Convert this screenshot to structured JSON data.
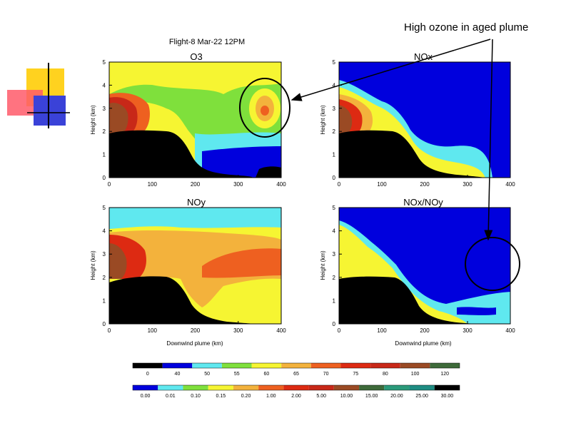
{
  "figure_title": "Flight-8 Mar-22 12PM",
  "callout_text": "High ozone in aged plume",
  "colors": {
    "terrain": "#000000",
    "o3_scale": [
      "#000000",
      "#0000dd",
      "#5fe8ef",
      "#7fe03c",
      "#f6f532",
      "#f3b23c",
      "#ee6020",
      "#dd2a12",
      "#c82818",
      "#9a4a24",
      "#3e6a3a"
    ],
    "ratio_scale": [
      "#0000dd",
      "#5fe8ef",
      "#7fe03c",
      "#f6f532",
      "#f3b23c",
      "#ee6020",
      "#dd2a12",
      "#c82818",
      "#9a4a24",
      "#3e6a3a",
      "#2a9a7a",
      "#1e8c82",
      "#000000"
    ]
  },
  "chart_data": [
    {
      "type": "heatmap",
      "title": "O3",
      "xlabel": "",
      "ylabel": "Height (km)",
      "xlim": [
        0,
        400
      ],
      "ylim": [
        0,
        5
      ],
      "xticks": [
        0,
        100,
        200,
        300,
        400
      ],
      "yticks": [
        0,
        1,
        2,
        3,
        4,
        5
      ],
      "background_level": "55",
      "terrain_profile_km": [
        [
          0,
          2.0
        ],
        [
          40,
          2.1
        ],
        [
          80,
          2.1
        ],
        [
          120,
          2.0
        ],
        [
          150,
          1.7
        ],
        [
          175,
          1.2
        ],
        [
          200,
          0.7
        ],
        [
          230,
          0.3
        ],
        [
          260,
          0.2
        ],
        [
          300,
          0.15
        ],
        [
          340,
          0.1
        ],
        [
          370,
          0.5
        ],
        [
          400,
          0.4
        ]
      ],
      "regions": [
        {
          "level": "60",
          "description": "upper layer above 4 km and band near ground"
        },
        {
          "level": "50",
          "description": "layer around 1.5 km"
        },
        {
          "level": "40",
          "description": "lowest layer from 200 to 400 km"
        },
        {
          "level": "120",
          "description": "near-source plume 0-50 km, 2-3.5 km"
        },
        {
          "level": "75",
          "description": "aged plume core near 360 km, 3 km"
        }
      ]
    },
    {
      "type": "heatmap",
      "title": "NOx",
      "xlabel": "",
      "ylabel": "Height (km)",
      "xlim": [
        0,
        400
      ],
      "ylim": [
        0,
        5
      ],
      "xticks": [
        0,
        100,
        200,
        300,
        400
      ],
      "yticks": [
        0,
        1,
        2,
        3,
        4,
        5
      ],
      "background_level": "0.00",
      "regions": [
        {
          "level": "0.15",
          "description": "plume spreading downslope, 0-200 km"
        },
        {
          "level": "5.00",
          "description": "near-source plume core"
        },
        {
          "level": "15.00",
          "description": "source region, 0-30 km"
        }
      ]
    },
    {
      "type": "heatmap",
      "title": "NOy",
      "xlabel": "Downwind plume (km)",
      "ylabel": "Height (km)",
      "xlim": [
        0,
        400
      ],
      "ylim": [
        0,
        5
      ],
      "xticks": [
        0,
        100,
        200,
        300,
        400
      ],
      "yticks": [
        0,
        1,
        2,
        3,
        4,
        5
      ],
      "background_level": "0.15",
      "regions": [
        {
          "level": "0.01",
          "description": "top layer above 4.5 km"
        },
        {
          "level": "0.20",
          "description": "plume 2-4 km across domain"
        },
        {
          "level": "1.00",
          "description": "aged plume core 250-400 km, 2.2-3.3 km"
        },
        {
          "level": "10.00",
          "description": "source region"
        }
      ]
    },
    {
      "type": "heatmap",
      "title": "NOx/NOy",
      "xlabel": "Downwind plume (km)",
      "ylabel": "Height (km)",
      "xlim": [
        0,
        400
      ],
      "ylim": [
        0,
        5
      ],
      "xticks": [
        0,
        100,
        200,
        300,
        400
      ],
      "yticks": [
        0,
        1,
        2,
        3,
        4,
        5
      ],
      "background_level": "0.00",
      "regions": [
        {
          "level": "0.15",
          "description": "near-source plume and lower slope"
        },
        {
          "level": "0.01",
          "description": "low layer 250-400 km"
        }
      ]
    }
  ],
  "colorbars": [
    {
      "labels": [
        "0",
        "40",
        "50",
        "55",
        "60",
        "65",
        "70",
        "75",
        "80",
        "100",
        "120"
      ]
    },
    {
      "labels": [
        "0.00",
        "0.01",
        "0.10",
        "0.15",
        "0.20",
        "1.00",
        "2.00",
        "5.00",
        "10.00",
        "15.00",
        "20.00",
        "25.00",
        "30.00"
      ]
    }
  ]
}
